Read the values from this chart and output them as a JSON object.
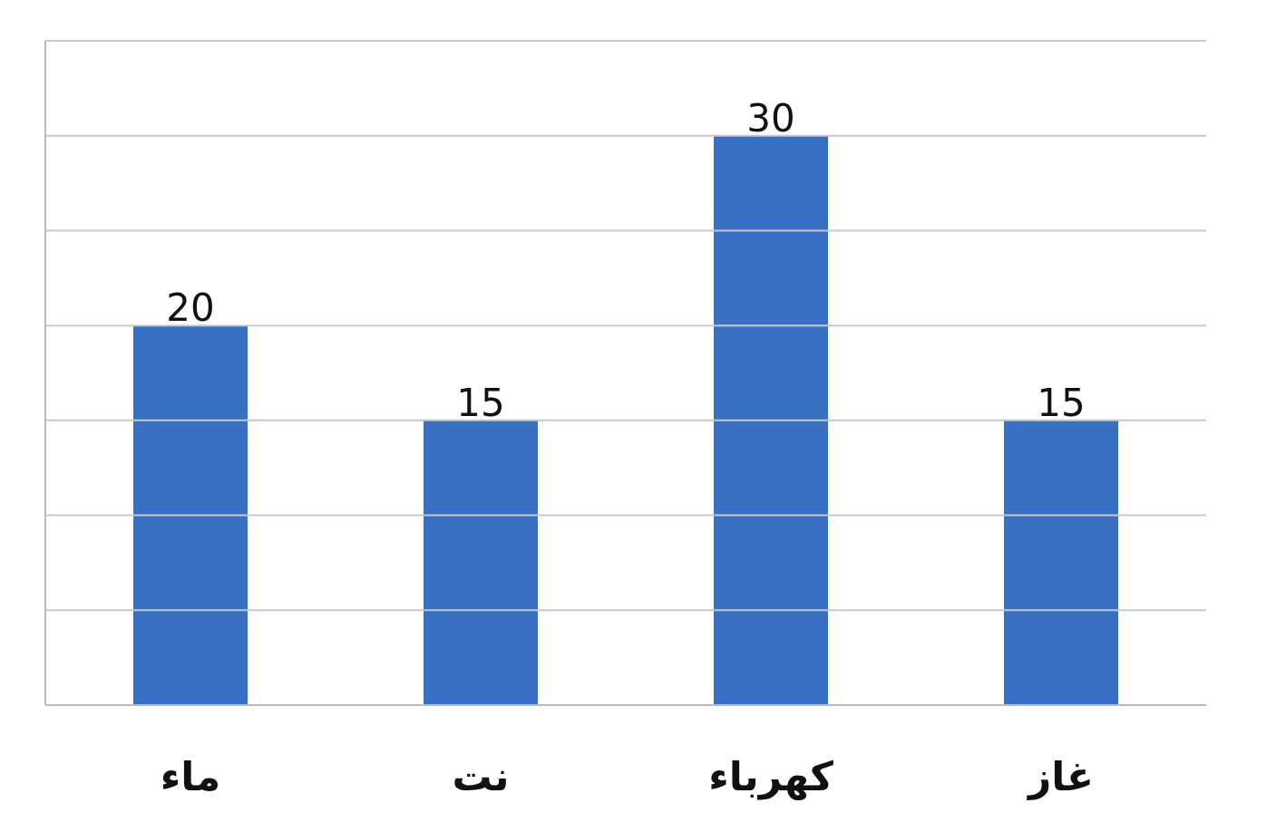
{
  "chart_data": {
    "type": "bar",
    "categories": [
      "ماء",
      "نت",
      "كهرباء",
      "غاز"
    ],
    "values": [
      20,
      15,
      30,
      15
    ],
    "color": "#3a70c3",
    "data_labels": true,
    "ylim": [
      0,
      35
    ],
    "yticks": [
      {
        "value": 0,
        "label": null
      },
      {
        "value": 5,
        "label": null
      },
      {
        "value": 10,
        "label": null
      },
      {
        "value": 15,
        "label": null
      },
      {
        "value": 20,
        "label": null
      },
      {
        "value": 25,
        "label": null
      },
      {
        "value": 30,
        "label": null
      },
      {
        "value": 35,
        "label": null
      }
    ],
    "grid": "y",
    "tick_labels": "x"
  }
}
